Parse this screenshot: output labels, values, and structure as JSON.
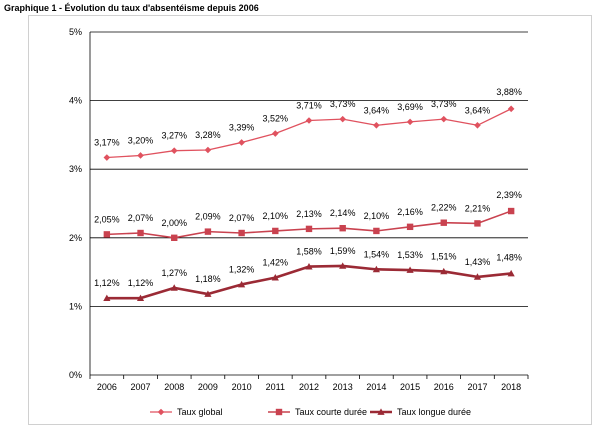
{
  "title": "Graphique 1 - Évolution du taux d'absentéisme depuis 2006",
  "colors": {
    "global": "#e0525f",
    "courte": "#c9424f",
    "longue": "#9b2a35",
    "grid": "#000000"
  },
  "chart_data": {
    "type": "line",
    "title": "Graphique 1 - Évolution du taux d'absentéisme depuis 2006",
    "xlabel": "",
    "ylabel": "",
    "categories": [
      "2006",
      "2007",
      "2008",
      "2009",
      "2010",
      "2011",
      "2012",
      "2013",
      "2014",
      "2015",
      "2016",
      "2017",
      "2018"
    ],
    "ylim": [
      0,
      5
    ],
    "yticks": [
      0,
      1,
      2,
      3,
      4,
      5
    ],
    "ytick_labels": [
      "0%",
      "1%",
      "2%",
      "3%",
      "4%",
      "5%"
    ],
    "grid": true,
    "legend": "bottom",
    "series": [
      {
        "name": "Taux global",
        "marker": "diamond",
        "values": [
          3.17,
          3.2,
          3.27,
          3.28,
          3.39,
          3.52,
          3.71,
          3.73,
          3.64,
          3.69,
          3.73,
          3.64,
          3.88
        ],
        "labels": [
          "3,17%",
          "3,20%",
          "3,27%",
          "3,28%",
          "3,39%",
          "3,52%",
          "3,71%",
          "3,73%",
          "3,64%",
          "3,69%",
          "3,73%",
          "3,64%",
          "3,88%"
        ]
      },
      {
        "name": "Taux courte durée",
        "marker": "square",
        "values": [
          2.05,
          2.07,
          2.0,
          2.09,
          2.07,
          2.1,
          2.13,
          2.14,
          2.1,
          2.16,
          2.22,
          2.21,
          2.39
        ],
        "labels": [
          "2,05%",
          "2,07%",
          "2,00%",
          "2,09%",
          "2,07%",
          "2,10%",
          "2,13%",
          "2,14%",
          "2,10%",
          "2,16%",
          "2,22%",
          "2,21%",
          "2,39%"
        ]
      },
      {
        "name": "Taux longue durée",
        "marker": "triangle",
        "values": [
          1.12,
          1.12,
          1.27,
          1.18,
          1.32,
          1.42,
          1.58,
          1.59,
          1.54,
          1.53,
          1.51,
          1.43,
          1.48
        ],
        "labels": [
          "1,12%",
          "1,12%",
          "1,27%",
          "1,18%",
          "1,32%",
          "1,42%",
          "1,58%",
          "1,59%",
          "1,54%",
          "1,53%",
          "1,51%",
          "1,43%",
          "1,48%"
        ]
      }
    ]
  }
}
